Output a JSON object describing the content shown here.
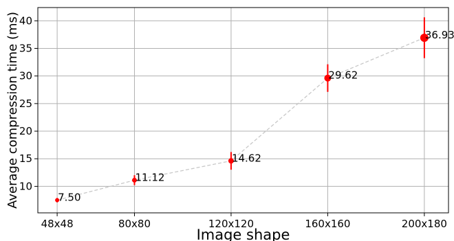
{
  "chart_data": {
    "type": "scatter",
    "title": "",
    "xlabel": "Image shape",
    "ylabel": "Average compression time (ms)",
    "grid": true,
    "x": [
      48,
      80,
      120,
      160,
      200
    ],
    "x_tick_labels": [
      "48x48",
      "80x80",
      "120x120",
      "160x160",
      "200x180"
    ],
    "xlim": [
      40,
      210
    ],
    "ylim": [
      5.2,
      42.4
    ],
    "y_ticks": [
      10,
      15,
      20,
      25,
      30,
      35,
      40
    ],
    "series": [
      {
        "values": [
          7.5,
          11.12,
          14.62,
          29.62,
          36.93
        ],
        "error": [
          0.4,
          0.9,
          1.6,
          2.5,
          3.7
        ],
        "data_labels": [
          "7.50",
          "11.12",
          "14.62",
          "29.62",
          "36.93"
        ],
        "point_sizes": [
          2.5,
          3.0,
          3.5,
          4.5,
          5.5
        ],
        "color": "#ff0000",
        "errorbar_color": "#ff0000",
        "connector_color": "#c8c8c8",
        "connector_style": "dashed"
      }
    ]
  }
}
